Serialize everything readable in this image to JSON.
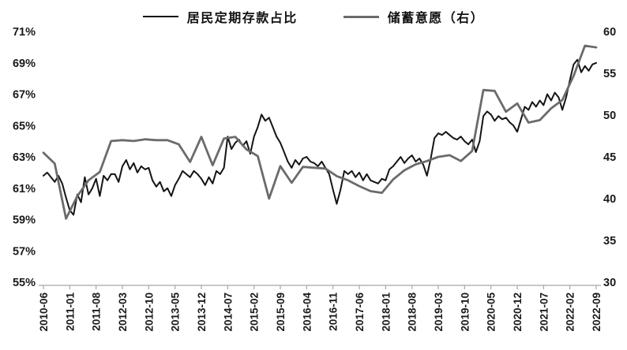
{
  "legend": {
    "items": [
      {
        "label": "居民定期存款占比",
        "color": "#141414"
      },
      {
        "label": "储蓄意愿（右）",
        "color": "#6b6b6b"
      }
    ]
  },
  "chart_data": {
    "type": "line",
    "title": "",
    "grid": false,
    "legend_position": "top",
    "x_tick_labels": [
      "2010-06",
      "2011-01",
      "2011-08",
      "2012-03",
      "2012-10",
      "2013-05",
      "2013-12",
      "2014-07",
      "2015-02",
      "2015-09",
      "2016-04",
      "2016-11",
      "2017-06",
      "2018-01",
      "2018-08",
      "2019-03",
      "2019-10",
      "2020-05",
      "2020-12",
      "2021-07",
      "2022-02",
      "2022-09"
    ],
    "x_tick_interval_months": 7,
    "left_axis": {
      "tick_labels": [
        "71%",
        "69%",
        "67%",
        "65%",
        "63%",
        "61%",
        "59%",
        "57%",
        "55%"
      ],
      "tick_values": [
        71,
        69,
        67,
        65,
        63,
        61,
        59,
        57,
        55
      ],
      "min": 55,
      "max": 71
    },
    "right_axis": {
      "tick_labels": [
        "60",
        "55",
        "50",
        "45",
        "40",
        "35",
        "30"
      ],
      "tick_values": [
        60,
        55,
        50,
        45,
        40,
        35,
        30
      ],
      "min": 30,
      "max": 60
    },
    "series": [
      {
        "name": "居民定期存款占比",
        "data_name": "deposit-share-line",
        "axis": "left",
        "color": "#141414",
        "width": 2,
        "start": "2010-06",
        "interval_months": 1,
        "values": [
          61.8,
          62.0,
          61.7,
          61.4,
          61.8,
          61.3,
          60.4,
          59.6,
          59.3,
          60.6,
          60.1,
          61.7,
          60.6,
          61.0,
          61.6,
          60.5,
          61.8,
          61.5,
          61.9,
          61.9,
          61.4,
          62.4,
          62.8,
          62.2,
          62.6,
          62.0,
          62.4,
          62.2,
          62.3,
          61.5,
          61.1,
          61.4,
          60.8,
          61.0,
          60.5,
          61.2,
          61.6,
          62.1,
          61.9,
          61.7,
          62.1,
          61.9,
          61.6,
          61.2,
          61.7,
          61.3,
          62.1,
          61.9,
          62.3,
          64.3,
          63.5,
          63.9,
          64.1,
          63.7,
          64.0,
          63.2,
          64.3,
          64.9,
          65.7,
          65.3,
          65.5,
          64.9,
          64.3,
          63.9,
          63.3,
          62.7,
          62.3,
          62.8,
          62.5,
          62.9,
          63.0,
          62.7,
          62.6,
          62.4,
          62.7,
          62.3,
          61.9,
          60.9,
          60.0,
          60.9,
          62.1,
          61.9,
          62.1,
          61.7,
          62.0,
          61.5,
          61.9,
          61.5,
          61.4,
          61.3,
          61.6,
          61.5,
          62.2,
          62.4,
          62.7,
          63.0,
          62.6,
          62.9,
          63.1,
          62.7,
          62.9,
          62.5,
          61.8,
          62.9,
          64.2,
          64.5,
          64.4,
          64.6,
          64.4,
          64.2,
          64.1,
          64.3,
          64.0,
          63.8,
          64.1,
          63.3,
          64.0,
          65.6,
          65.9,
          65.7,
          65.3,
          65.6,
          65.4,
          65.5,
          65.2,
          65.0,
          64.6,
          65.4,
          66.2,
          66.0,
          66.5,
          66.2,
          66.6,
          66.3,
          67.0,
          66.6,
          67.1,
          66.8,
          66.0,
          66.8,
          67.9,
          68.9,
          69.2,
          68.4,
          68.8,
          68.5,
          68.9,
          69.0
        ]
      },
      {
        "name": "储蓄意愿（右）",
        "data_name": "savings-willingness-line",
        "axis": "right",
        "color": "#6b6b6b",
        "width": 2.8,
        "start": "2010-06",
        "interval_months": 3,
        "values": [
          45.5,
          44.2,
          37.6,
          40.3,
          42.2,
          43.2,
          46.9,
          47.0,
          46.9,
          47.1,
          47.0,
          47.0,
          46.5,
          44.4,
          47.4,
          44.0,
          47.2,
          47.4,
          45.9,
          45.1,
          40.0,
          43.9,
          41.9,
          43.8,
          43.7,
          43.6,
          42.7,
          42.2,
          41.5,
          40.9,
          40.7,
          42.3,
          43.4,
          44.1,
          44.5,
          45.0,
          45.2,
          44.5,
          45.7,
          53.0,
          52.9,
          50.4,
          51.4,
          49.1,
          49.4,
          50.8,
          51.8,
          54.7,
          58.3,
          58.1
        ]
      }
    ]
  }
}
